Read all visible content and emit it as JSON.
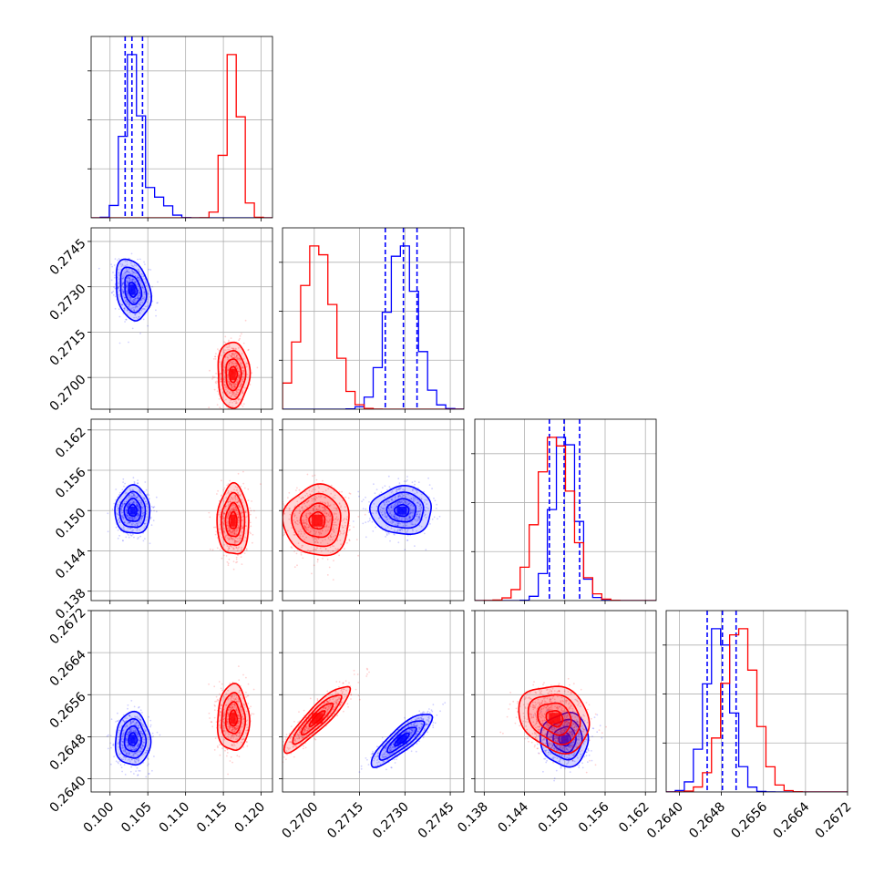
{
  "colors": {
    "blue": "#0000ff",
    "red": "#ff0000",
    "grid": "#b0b0b0",
    "axis": "#000000"
  },
  "chart_data": {
    "type": "corner",
    "parameters": [
      {
        "range": [
          0.0975,
          0.1215
        ],
        "ticks": [
          "0.100",
          "0.105",
          "0.110",
          "0.115",
          "0.120"
        ],
        "tick_values": [
          0.1,
          0.105,
          0.11,
          0.115,
          0.12
        ]
      },
      {
        "range": [
          0.26895,
          0.27495
        ],
        "ticks": [
          "0.2700",
          "0.2715",
          "0.2730",
          "0.2745"
        ],
        "tick_values": [
          0.27,
          0.2715,
          0.273,
          0.2745
        ]
      },
      {
        "range": [
          0.1366,
          0.1636
        ],
        "ticks": [
          "0.138",
          "0.144",
          "0.150",
          "0.156",
          "0.162"
        ],
        "tick_values": [
          0.138,
          0.144,
          0.15,
          0.156,
          0.162
        ]
      },
      {
        "range": [
          0.26375,
          0.2672
        ],
        "ticks": [
          "0.2640",
          "0.2648",
          "0.2656",
          "0.2664",
          "0.2672"
        ],
        "tick_values": [
          0.264,
          0.2648,
          0.2656,
          0.2664,
          0.2672
        ]
      }
    ],
    "series": [
      {
        "color": "blue",
        "mean": [
          0.103,
          0.2729,
          0.15,
          0.26475
        ],
        "std": [
          0.0011,
          0.00048,
          0.0017,
          0.00024
        ],
        "corr": [
          [
            1,
            -0.25,
            0,
            0
          ],
          [
            -0.25,
            1,
            0,
            0.85
          ],
          [
            0,
            0,
            1,
            0
          ],
          [
            0,
            0.85,
            0,
            1
          ]
        ],
        "quantiles": [
          [
            0.102,
            0.1029,
            0.1043
          ],
          [
            0.27235,
            0.27295,
            0.2734
          ],
          [
            0.1477,
            0.1499,
            0.1522
          ],
          [
            0.26453,
            0.26482,
            0.26508
          ]
        ]
      },
      {
        "color": "red",
        "mean": [
          0.1163,
          0.2701,
          0.1485,
          0.26515
        ],
        "std": [
          0.001,
          0.00052,
          0.0025,
          0.0003
        ],
        "corr": [
          [
            1,
            0,
            0,
            0
          ],
          [
            0,
            1,
            0,
            0.9
          ],
          [
            0,
            0,
            1,
            -0.2
          ],
          [
            0,
            0.9,
            -0.2,
            1
          ]
        ],
        "quantiles": null
      }
    ]
  }
}
